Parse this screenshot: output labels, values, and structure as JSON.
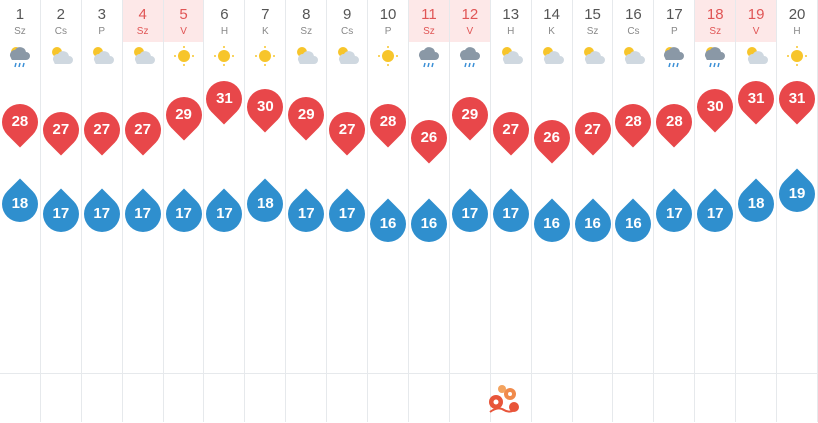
{
  "days": [
    {
      "num": "1",
      "name": "Sz",
      "weekend": false,
      "icon": "rain-cloud-sun-icon",
      "max": "28",
      "min": "18"
    },
    {
      "num": "2",
      "name": "Cs",
      "weekend": false,
      "icon": "partly-cloudy-icon",
      "max": "27",
      "min": "17"
    },
    {
      "num": "3",
      "name": "P",
      "weekend": false,
      "icon": "partly-cloudy-icon",
      "max": "27",
      "min": "17"
    },
    {
      "num": "4",
      "name": "Sz",
      "weekend": true,
      "icon": "partly-cloudy-icon",
      "max": "27",
      "min": "17"
    },
    {
      "num": "5",
      "name": "V",
      "weekend": true,
      "icon": "sun-icon",
      "max": "29",
      "min": "17"
    },
    {
      "num": "6",
      "name": "H",
      "weekend": false,
      "icon": "sun-icon",
      "max": "31",
      "min": "17"
    },
    {
      "num": "7",
      "name": "K",
      "weekend": false,
      "icon": "sun-icon",
      "max": "30",
      "min": "18"
    },
    {
      "num": "8",
      "name": "Sz",
      "weekend": false,
      "icon": "partly-cloudy-icon",
      "max": "29",
      "min": "17"
    },
    {
      "num": "9",
      "name": "Cs",
      "weekend": false,
      "icon": "partly-cloudy-icon",
      "max": "27",
      "min": "17"
    },
    {
      "num": "10",
      "name": "P",
      "weekend": false,
      "icon": "sun-icon",
      "max": "28",
      "min": "16"
    },
    {
      "num": "11",
      "name": "Sz",
      "weekend": true,
      "icon": "rain-cloud-icon",
      "max": "26",
      "min": "16"
    },
    {
      "num": "12",
      "name": "V",
      "weekend": true,
      "icon": "rain-cloud-icon",
      "max": "29",
      "min": "17"
    },
    {
      "num": "13",
      "name": "H",
      "weekend": false,
      "icon": "partly-cloudy-icon",
      "max": "27",
      "min": "17"
    },
    {
      "num": "14",
      "name": "K",
      "weekend": false,
      "icon": "partly-cloudy-icon",
      "max": "26",
      "min": "16"
    },
    {
      "num": "15",
      "name": "Sz",
      "weekend": false,
      "icon": "partly-cloudy-icon",
      "max": "27",
      "min": "16"
    },
    {
      "num": "16",
      "name": "Cs",
      "weekend": false,
      "icon": "partly-cloudy-icon",
      "max": "28",
      "min": "16"
    },
    {
      "num": "17",
      "name": "P",
      "weekend": false,
      "icon": "rain-cloud-sun-icon",
      "max": "28",
      "min": "17"
    },
    {
      "num": "18",
      "name": "Sz",
      "weekend": true,
      "icon": "rain-cloud-sun-icon",
      "max": "30",
      "min": "17"
    },
    {
      "num": "19",
      "name": "V",
      "weekend": true,
      "icon": "partly-cloudy-icon",
      "max": "31",
      "min": "18"
    },
    {
      "num": "20",
      "name": "H",
      "weekend": false,
      "icon": "sun-icon",
      "max": "31",
      "min": "19"
    }
  ],
  "colors": {
    "max": "#e8474a",
    "min": "#2f8fce",
    "weekend_bg": "#fde8e8",
    "weekend_text": "#e05555"
  },
  "holiday_marker": {
    "icon": "flower-icon",
    "day": "13"
  }
}
